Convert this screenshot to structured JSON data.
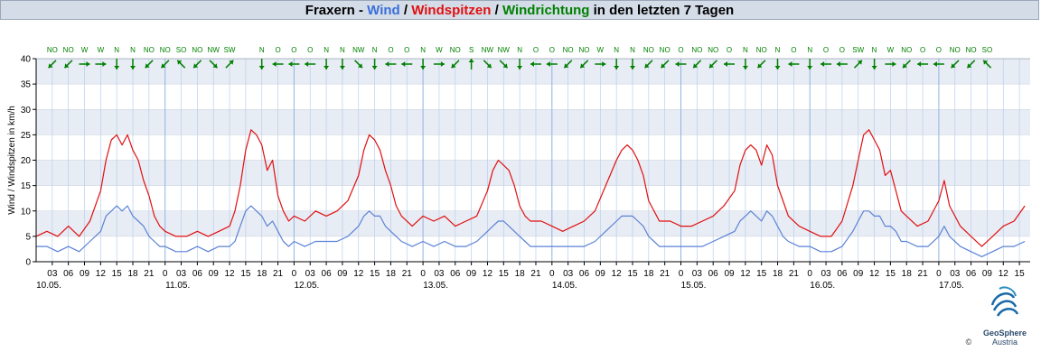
{
  "title": {
    "station": "Fraxern",
    "sep": " - ",
    "wind": "Wind",
    "slash1": " / ",
    "gusts": "Windspitzen",
    "slash2": " / ",
    "direction": "Windrichtung",
    "suffix": " in den letzten 7 Tagen"
  },
  "colors": {
    "wind": "#3a6fd8",
    "wind_line": "#5b82d6",
    "gusts": "#e01010",
    "direction": "#008000",
    "band": "#e8ecf4",
    "vgrid": "#b8d0ec",
    "title_bg": "#d4dce8"
  },
  "logo": {
    "name": "GeoSphere",
    "sub": "Austria",
    "copyright": "©"
  },
  "chart_data": {
    "type": "line",
    "ylabel": "Wind / Windspitzen in km/h",
    "ylim": [
      0,
      40
    ],
    "yticks": [
      0,
      5,
      10,
      15,
      20,
      25,
      30,
      35,
      40
    ],
    "x_unit": "hours since 10.05. 00:00",
    "xlim": [
      0,
      185
    ],
    "hour_ticks": [
      "03",
      "06",
      "09",
      "12",
      "15",
      "18",
      "21",
      "0"
    ],
    "day_labels": [
      {
        "hour": 0,
        "label": "10.05."
      },
      {
        "hour": 24,
        "label": "11.05."
      },
      {
        "hour": 48,
        "label": "12.05."
      },
      {
        "hour": 72,
        "label": "13.05."
      },
      {
        "hour": 96,
        "label": "14.05."
      },
      {
        "hour": 120,
        "label": "15.05."
      },
      {
        "hour": 144,
        "label": "16.05."
      },
      {
        "hour": 168,
        "label": "17.05."
      }
    ],
    "directions": [
      {
        "hour": 3,
        "dir": "NO"
      },
      {
        "hour": 6,
        "dir": "NO"
      },
      {
        "hour": 9,
        "dir": "W"
      },
      {
        "hour": 12,
        "dir": "W"
      },
      {
        "hour": 15,
        "dir": "N"
      },
      {
        "hour": 18,
        "dir": "N"
      },
      {
        "hour": 21,
        "dir": "NO"
      },
      {
        "hour": 24,
        "dir": "NO"
      },
      {
        "hour": 27,
        "dir": "SO"
      },
      {
        "hour": 30,
        "dir": "NO"
      },
      {
        "hour": 33,
        "dir": "NW"
      },
      {
        "hour": 36,
        "dir": "SW"
      },
      {
        "hour": 42,
        "dir": "N"
      },
      {
        "hour": 45,
        "dir": "O"
      },
      {
        "hour": 48,
        "dir": "O"
      },
      {
        "hour": 51,
        "dir": "O"
      },
      {
        "hour": 54,
        "dir": "N"
      },
      {
        "hour": 57,
        "dir": "N"
      },
      {
        "hour": 60,
        "dir": "NW"
      },
      {
        "hour": 63,
        "dir": "N"
      },
      {
        "hour": 66,
        "dir": "O"
      },
      {
        "hour": 69,
        "dir": "O"
      },
      {
        "hour": 72,
        "dir": "N"
      },
      {
        "hour": 75,
        "dir": "W"
      },
      {
        "hour": 78,
        "dir": "NO"
      },
      {
        "hour": 81,
        "dir": "S"
      },
      {
        "hour": 84,
        "dir": "NW"
      },
      {
        "hour": 87,
        "dir": "NW"
      },
      {
        "hour": 90,
        "dir": "N"
      },
      {
        "hour": 93,
        "dir": "O"
      },
      {
        "hour": 96,
        "dir": "O"
      },
      {
        "hour": 99,
        "dir": "NO"
      },
      {
        "hour": 102,
        "dir": "NO"
      },
      {
        "hour": 105,
        "dir": "W"
      },
      {
        "hour": 108,
        "dir": "N"
      },
      {
        "hour": 111,
        "dir": "N"
      },
      {
        "hour": 114,
        "dir": "NO"
      },
      {
        "hour": 117,
        "dir": "NO"
      },
      {
        "hour": 120,
        "dir": "O"
      },
      {
        "hour": 123,
        "dir": "NO"
      },
      {
        "hour": 126,
        "dir": "NO"
      },
      {
        "hour": 129,
        "dir": "O"
      },
      {
        "hour": 132,
        "dir": "N"
      },
      {
        "hour": 135,
        "dir": "NO"
      },
      {
        "hour": 138,
        "dir": "N"
      },
      {
        "hour": 141,
        "dir": "O"
      },
      {
        "hour": 144,
        "dir": "N"
      },
      {
        "hour": 147,
        "dir": "O"
      },
      {
        "hour": 150,
        "dir": "O"
      },
      {
        "hour": 153,
        "dir": "SW"
      },
      {
        "hour": 156,
        "dir": "N"
      },
      {
        "hour": 159,
        "dir": "W"
      },
      {
        "hour": 162,
        "dir": "NO"
      },
      {
        "hour": 165,
        "dir": "O"
      },
      {
        "hour": 168,
        "dir": "O"
      },
      {
        "hour": 171,
        "dir": "NO"
      },
      {
        "hour": 174,
        "dir": "NO"
      },
      {
        "hour": 177,
        "dir": "SO"
      }
    ],
    "series": [
      {
        "name": "Windspitzen",
        "points": [
          [
            0,
            5
          ],
          [
            2,
            6
          ],
          [
            4,
            5
          ],
          [
            6,
            7
          ],
          [
            8,
            5
          ],
          [
            10,
            8
          ],
          [
            12,
            14
          ],
          [
            13,
            20
          ],
          [
            14,
            24
          ],
          [
            15,
            25
          ],
          [
            16,
            23
          ],
          [
            17,
            25
          ],
          [
            18,
            22
          ],
          [
            19,
            20
          ],
          [
            20,
            16
          ],
          [
            21,
            13
          ],
          [
            22,
            9
          ],
          [
            23,
            7
          ],
          [
            24,
            6
          ],
          [
            26,
            5
          ],
          [
            28,
            5
          ],
          [
            30,
            6
          ],
          [
            32,
            5
          ],
          [
            34,
            6
          ],
          [
            36,
            7
          ],
          [
            37,
            10
          ],
          [
            38,
            15
          ],
          [
            39,
            22
          ],
          [
            40,
            26
          ],
          [
            41,
            25
          ],
          [
            42,
            23
          ],
          [
            43,
            18
          ],
          [
            44,
            20
          ],
          [
            45,
            13
          ],
          [
            46,
            10
          ],
          [
            47,
            8
          ],
          [
            48,
            9
          ],
          [
            50,
            8
          ],
          [
            52,
            10
          ],
          [
            54,
            9
          ],
          [
            56,
            10
          ],
          [
            58,
            12
          ],
          [
            60,
            17
          ],
          [
            61,
            22
          ],
          [
            62,
            25
          ],
          [
            63,
            24
          ],
          [
            64,
            22
          ],
          [
            65,
            18
          ],
          [
            66,
            15
          ],
          [
            67,
            11
          ],
          [
            68,
            9
          ],
          [
            70,
            7
          ],
          [
            72,
            9
          ],
          [
            74,
            8
          ],
          [
            76,
            9
          ],
          [
            78,
            7
          ],
          [
            80,
            8
          ],
          [
            82,
            9
          ],
          [
            84,
            14
          ],
          [
            85,
            18
          ],
          [
            86,
            20
          ],
          [
            87,
            19
          ],
          [
            88,
            18
          ],
          [
            89,
            15
          ],
          [
            90,
            11
          ],
          [
            91,
            9
          ],
          [
            92,
            8
          ],
          [
            94,
            8
          ],
          [
            96,
            7
          ],
          [
            98,
            6
          ],
          [
            100,
            7
          ],
          [
            102,
            8
          ],
          [
            104,
            10
          ],
          [
            106,
            15
          ],
          [
            108,
            20
          ],
          [
            109,
            22
          ],
          [
            110,
            23
          ],
          [
            111,
            22
          ],
          [
            112,
            20
          ],
          [
            113,
            17
          ],
          [
            114,
            12
          ],
          [
            115,
            10
          ],
          [
            116,
            8
          ],
          [
            118,
            8
          ],
          [
            120,
            7
          ],
          [
            122,
            7
          ],
          [
            124,
            8
          ],
          [
            126,
            9
          ],
          [
            128,
            11
          ],
          [
            130,
            14
          ],
          [
            131,
            19
          ],
          [
            132,
            22
          ],
          [
            133,
            23
          ],
          [
            134,
            22
          ],
          [
            135,
            19
          ],
          [
            136,
            23
          ],
          [
            137,
            21
          ],
          [
            138,
            15
          ],
          [
            139,
            12
          ],
          [
            140,
            9
          ],
          [
            142,
            7
          ],
          [
            144,
            6
          ],
          [
            146,
            5
          ],
          [
            148,
            5
          ],
          [
            150,
            8
          ],
          [
            152,
            15
          ],
          [
            153,
            20
          ],
          [
            154,
            25
          ],
          [
            155,
            26
          ],
          [
            156,
            24
          ],
          [
            157,
            22
          ],
          [
            158,
            17
          ],
          [
            159,
            18
          ],
          [
            160,
            14
          ],
          [
            161,
            10
          ],
          [
            162,
            9
          ],
          [
            164,
            7
          ],
          [
            166,
            8
          ],
          [
            168,
            12
          ],
          [
            169,
            16
          ],
          [
            170,
            11
          ],
          [
            171,
            9
          ],
          [
            172,
            7
          ],
          [
            174,
            5
          ],
          [
            176,
            3
          ],
          [
            178,
            5
          ],
          [
            180,
            7
          ],
          [
            182,
            8
          ],
          [
            184,
            11
          ]
        ]
      },
      {
        "name": "Wind",
        "points": [
          [
            0,
            3
          ],
          [
            2,
            3
          ],
          [
            4,
            2
          ],
          [
            6,
            3
          ],
          [
            8,
            2
          ],
          [
            10,
            4
          ],
          [
            12,
            6
          ],
          [
            13,
            9
          ],
          [
            14,
            10
          ],
          [
            15,
            11
          ],
          [
            16,
            10
          ],
          [
            17,
            11
          ],
          [
            18,
            9
          ],
          [
            19,
            8
          ],
          [
            20,
            7
          ],
          [
            21,
            5
          ],
          [
            22,
            4
          ],
          [
            23,
            3
          ],
          [
            24,
            3
          ],
          [
            26,
            2
          ],
          [
            28,
            2
          ],
          [
            30,
            3
          ],
          [
            32,
            2
          ],
          [
            34,
            3
          ],
          [
            36,
            3
          ],
          [
            37,
            4
          ],
          [
            38,
            7
          ],
          [
            39,
            10
          ],
          [
            40,
            11
          ],
          [
            41,
            10
          ],
          [
            42,
            9
          ],
          [
            43,
            7
          ],
          [
            44,
            8
          ],
          [
            45,
            6
          ],
          [
            46,
            4
          ],
          [
            47,
            3
          ],
          [
            48,
            4
          ],
          [
            50,
            3
          ],
          [
            52,
            4
          ],
          [
            54,
            4
          ],
          [
            56,
            4
          ],
          [
            58,
            5
          ],
          [
            60,
            7
          ],
          [
            61,
            9
          ],
          [
            62,
            10
          ],
          [
            63,
            9
          ],
          [
            64,
            9
          ],
          [
            65,
            7
          ],
          [
            66,
            6
          ],
          [
            67,
            5
          ],
          [
            68,
            4
          ],
          [
            70,
            3
          ],
          [
            72,
            4
          ],
          [
            74,
            3
          ],
          [
            76,
            4
          ],
          [
            78,
            3
          ],
          [
            80,
            3
          ],
          [
            82,
            4
          ],
          [
            84,
            6
          ],
          [
            85,
            7
          ],
          [
            86,
            8
          ],
          [
            87,
            8
          ],
          [
            88,
            7
          ],
          [
            89,
            6
          ],
          [
            90,
            5
          ],
          [
            91,
            4
          ],
          [
            92,
            3
          ],
          [
            94,
            3
          ],
          [
            96,
            3
          ],
          [
            98,
            3
          ],
          [
            100,
            3
          ],
          [
            102,
            3
          ],
          [
            104,
            4
          ],
          [
            106,
            6
          ],
          [
            108,
            8
          ],
          [
            109,
            9
          ],
          [
            110,
            9
          ],
          [
            111,
            9
          ],
          [
            112,
            8
          ],
          [
            113,
            7
          ],
          [
            114,
            5
          ],
          [
            115,
            4
          ],
          [
            116,
            3
          ],
          [
            118,
            3
          ],
          [
            120,
            3
          ],
          [
            122,
            3
          ],
          [
            124,
            3
          ],
          [
            126,
            4
          ],
          [
            128,
            5
          ],
          [
            130,
            6
          ],
          [
            131,
            8
          ],
          [
            132,
            9
          ],
          [
            133,
            10
          ],
          [
            134,
            9
          ],
          [
            135,
            8
          ],
          [
            136,
            10
          ],
          [
            137,
            9
          ],
          [
            138,
            7
          ],
          [
            139,
            5
          ],
          [
            140,
            4
          ],
          [
            142,
            3
          ],
          [
            144,
            3
          ],
          [
            146,
            2
          ],
          [
            148,
            2
          ],
          [
            150,
            3
          ],
          [
            152,
            6
          ],
          [
            153,
            8
          ],
          [
            154,
            10
          ],
          [
            155,
            10
          ],
          [
            156,
            9
          ],
          [
            157,
            9
          ],
          [
            158,
            7
          ],
          [
            159,
            7
          ],
          [
            160,
            6
          ],
          [
            161,
            4
          ],
          [
            162,
            4
          ],
          [
            164,
            3
          ],
          [
            166,
            3
          ],
          [
            168,
            5
          ],
          [
            169,
            7
          ],
          [
            170,
            5
          ],
          [
            171,
            4
          ],
          [
            172,
            3
          ],
          [
            174,
            2
          ],
          [
            176,
            1
          ],
          [
            178,
            2
          ],
          [
            180,
            3
          ],
          [
            182,
            3
          ],
          [
            184,
            4
          ]
        ]
      }
    ]
  }
}
